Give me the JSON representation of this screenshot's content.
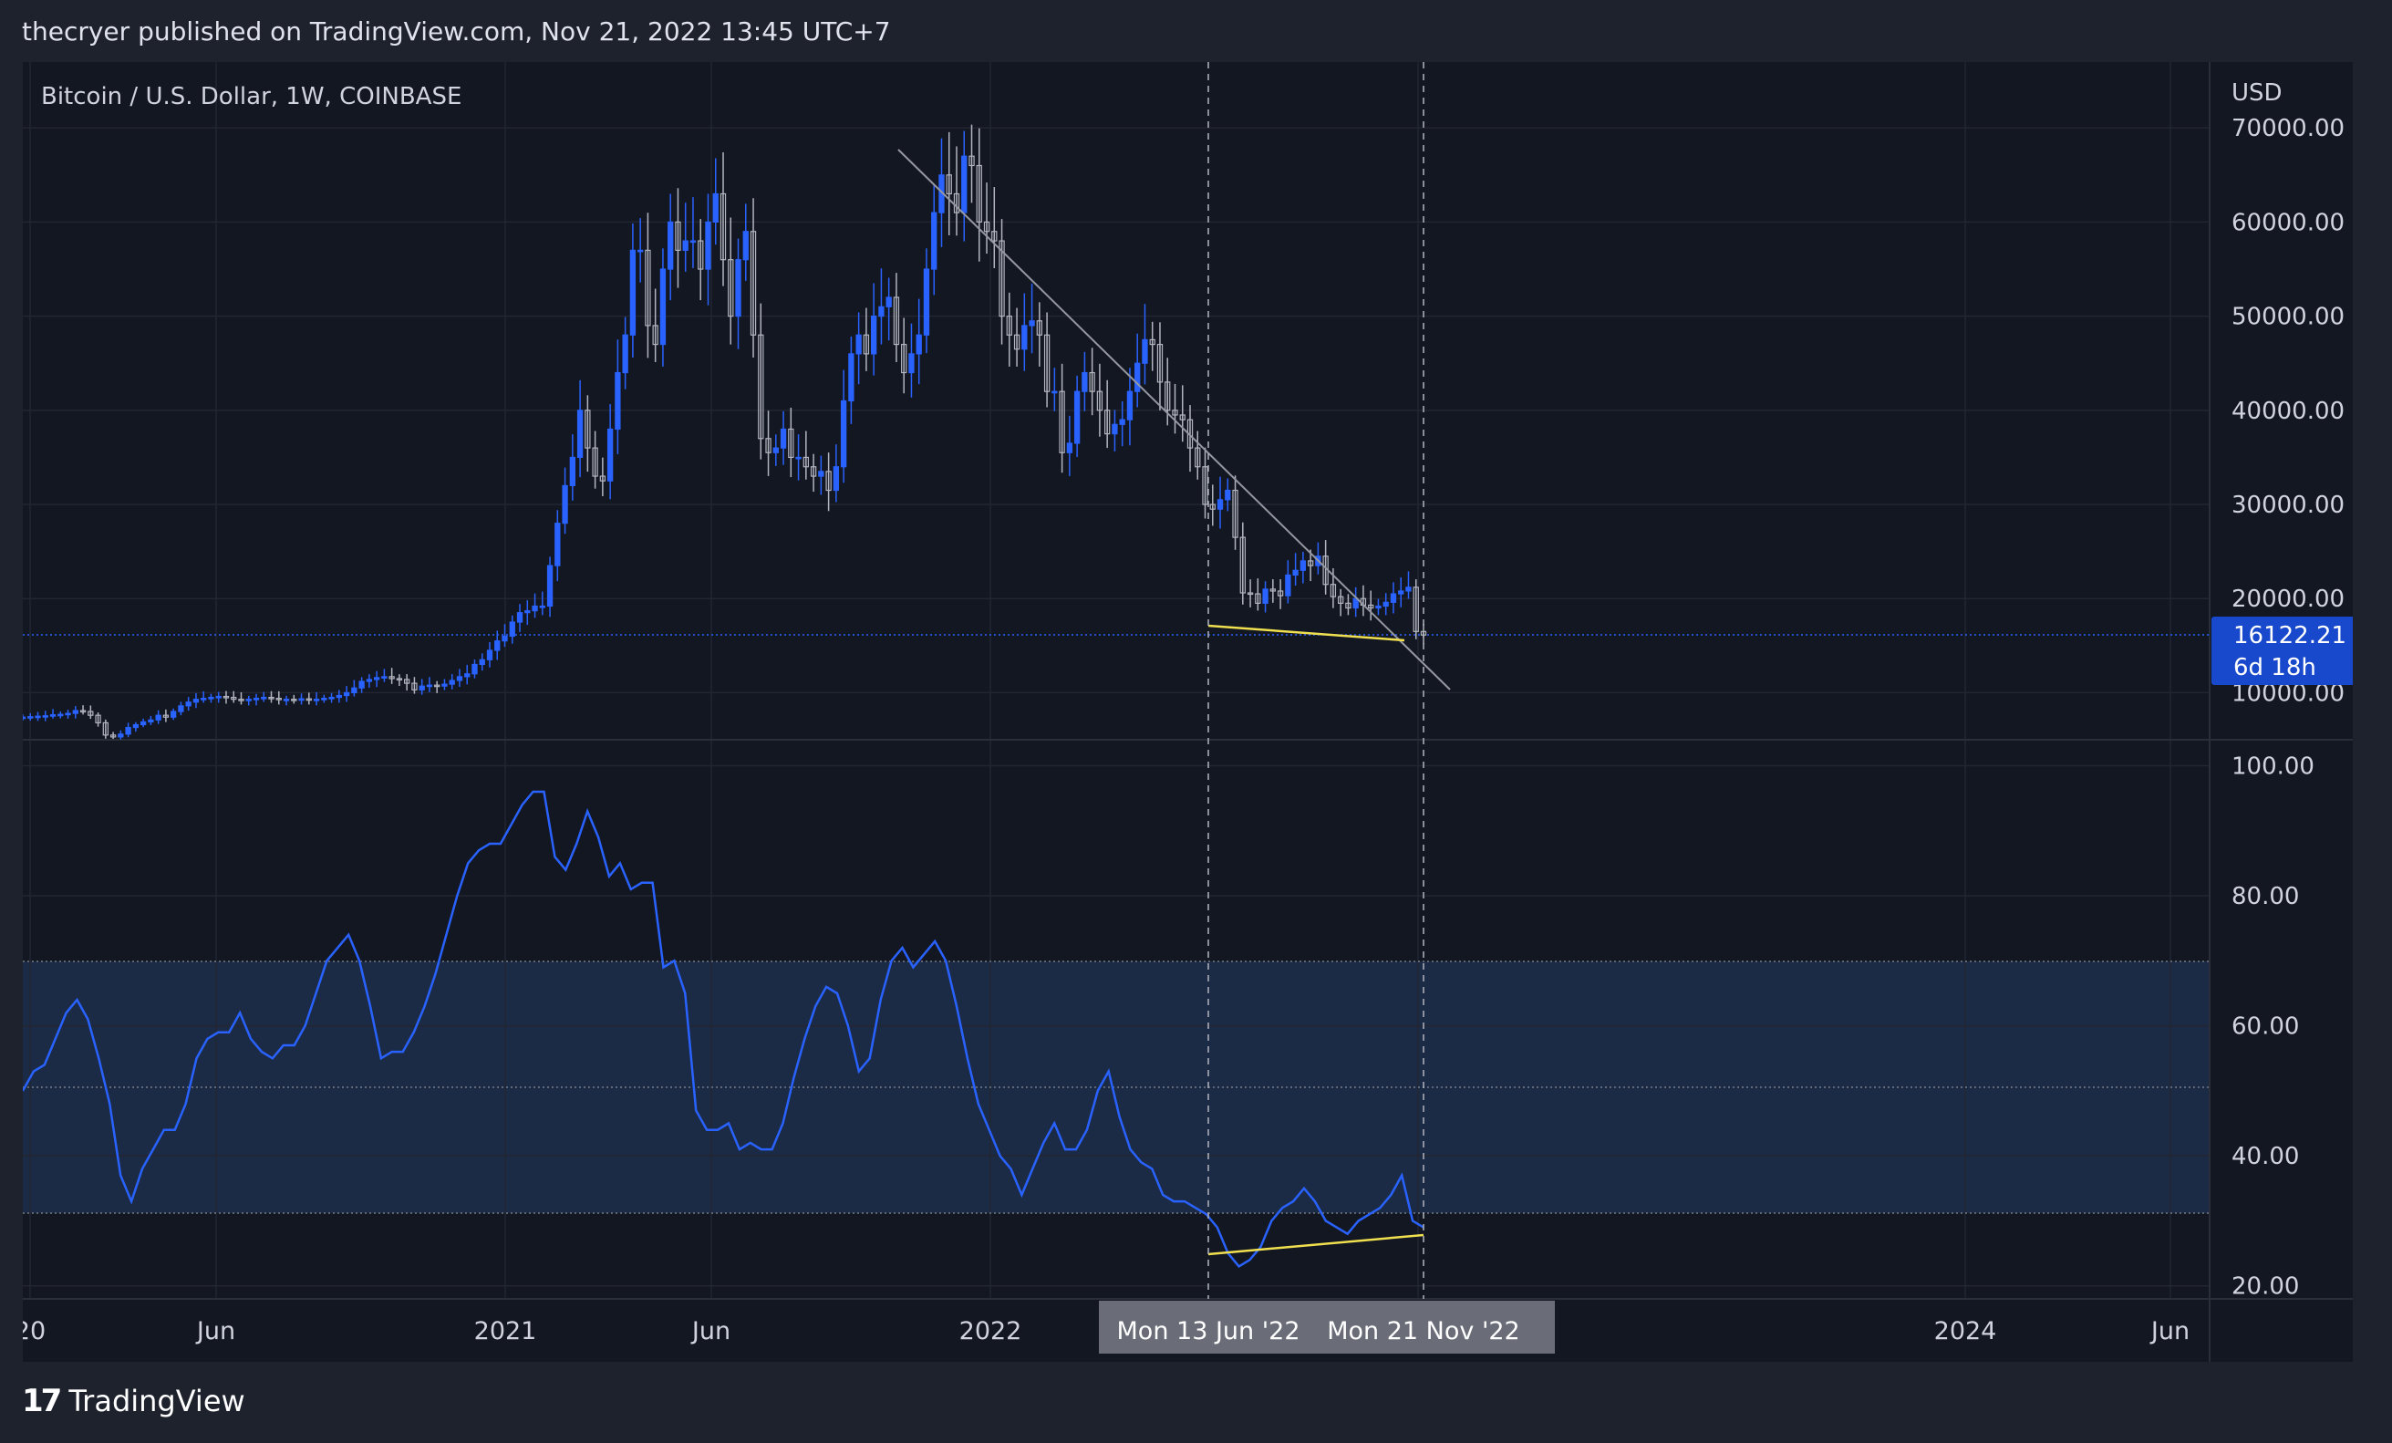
{
  "header": {
    "published": "thecryer published on TradingView.com, Nov 21, 2022 13:45 UTC+7"
  },
  "footer": {
    "brand": "TradingView",
    "logo_icon": "tradingview-logo-icon"
  },
  "price_badge": {
    "value": "16122.21",
    "countdown": "6d 18h",
    "color": "#1848cc"
  },
  "crosshair_labels": [
    "Mon 13 Jun '22",
    "Mon 21 Nov '22"
  ],
  "colors": {
    "up": "#2962ff",
    "down": "#b2b5be",
    "rsi": "#2962ff",
    "trendline": "#9598a1",
    "divergence": "#f0e050",
    "band": "#1b2b45"
  },
  "chart_data": [
    {
      "type": "candlestick",
      "title": "Bitcoin / U.S. Dollar, 1W, COINBASE",
      "ylabel": "USD",
      "y_ticks": [
        10000,
        20000,
        30000,
        40000,
        50000,
        60000,
        70000
      ],
      "y_tick_labels": [
        "10000.00",
        "20000.00",
        "30000.00",
        "40000.00",
        "50000.00",
        "60000.00",
        "70000.00"
      ],
      "ylim": [
        5000,
        77000
      ],
      "x_tick_labels": [
        "20",
        "Jun",
        "2021",
        "Jun",
        "2022",
        "Jun",
        "2024",
        "Jun"
      ],
      "last_price": 16122.21,
      "series_close": [
        7400,
        7450,
        7500,
        7550,
        7650,
        7700,
        7800,
        8100,
        8000,
        7600,
        6800,
        5500,
        5300,
        5600,
        6300,
        6600,
        6900,
        7100,
        7600,
        7400,
        8000,
        8600,
        9000,
        9300,
        9400,
        9500,
        9600,
        9500,
        9300,
        9200,
        9300,
        9400,
        9500,
        9400,
        9300,
        9300,
        9200,
        9350,
        9300,
        9300,
        9400,
        9500,
        9700,
        10000,
        10500,
        11200,
        11400,
        11600,
        11700,
        11500,
        11400,
        11000,
        10300,
        10700,
        10800,
        10700,
        10900,
        11300,
        11700,
        12000,
        13000,
        13500,
        14500,
        15500,
        16000,
        17500,
        18500,
        18700,
        19200,
        19200,
        23500,
        28000,
        32000,
        35000,
        40000,
        36000,
        33000,
        32500,
        38000,
        44000,
        48000,
        57000,
        57000,
        49000,
        47000,
        55000,
        60000,
        57000,
        58000,
        58000,
        55000,
        60000,
        63000,
        56000,
        50000,
        56000,
        59000,
        48000,
        37000,
        35500,
        36000,
        38000,
        35000,
        35000,
        34000,
        33000,
        33500,
        31500,
        34000,
        41000,
        46000,
        48000,
        46000,
        50000,
        51000,
        52000,
        47000,
        44000,
        46000,
        48000,
        55000,
        61000,
        65000,
        63000,
        61000,
        67000,
        66000,
        60000,
        59000,
        58000,
        50000,
        48000,
        46500,
        49000,
        49500,
        48000,
        42000,
        42000,
        35500,
        36500,
        42000,
        44000,
        42000,
        40000,
        37500,
        38500,
        39000,
        42000,
        45000,
        47500,
        47000,
        43000,
        40000,
        39500,
        39000,
        36000,
        34000,
        30000,
        29500,
        30500,
        31500,
        26500,
        20600,
        20500,
        19500,
        21000,
        20800,
        20300,
        22500,
        23000,
        24000,
        23500,
        24500,
        21500,
        20200,
        19500,
        19000,
        20000,
        19300,
        19000,
        19200,
        19600,
        20500,
        20800,
        21200,
        16500,
        16122
      ]
    },
    {
      "type": "line",
      "title": "",
      "y_ticks": [
        20,
        40,
        60,
        80,
        100
      ],
      "y_tick_labels": [
        "20.00",
        "40.00",
        "60.00",
        "80.00",
        "100.00"
      ],
      "ylim": [
        18,
        104
      ],
      "bands": {
        "upper": 70,
        "middle": 50,
        "lower": 30
      },
      "series_values": [
        50,
        53,
        54,
        58,
        62,
        64,
        61,
        55,
        48,
        37,
        33,
        38,
        41,
        44,
        44,
        48,
        55,
        58,
        59,
        59,
        62,
        58,
        56,
        55,
        57,
        57,
        60,
        65,
        70,
        72,
        74,
        70,
        63,
        55,
        56,
        56,
        59,
        63,
        68,
        74,
        80,
        85,
        87,
        88,
        88,
        91,
        94,
        96,
        96,
        86,
        84,
        88,
        93,
        89,
        83,
        85,
        81,
        82,
        82,
        69,
        70,
        65,
        47,
        44,
        44,
        45,
        41,
        42,
        41,
        41,
        45,
        52,
        58,
        63,
        66,
        65,
        60,
        53,
        55,
        64,
        70,
        72,
        69,
        71,
        73,
        70,
        63,
        55,
        48,
        44,
        40,
        38,
        34,
        38,
        42,
        45,
        41,
        41,
        44,
        50,
        53,
        46,
        41,
        39,
        38,
        34,
        33,
        33,
        32,
        31,
        29,
        25,
        23,
        24,
        26,
        30,
        32,
        33,
        35,
        33,
        30,
        29,
        28,
        30,
        31,
        32,
        34,
        37,
        30,
        29
      ]
    }
  ]
}
